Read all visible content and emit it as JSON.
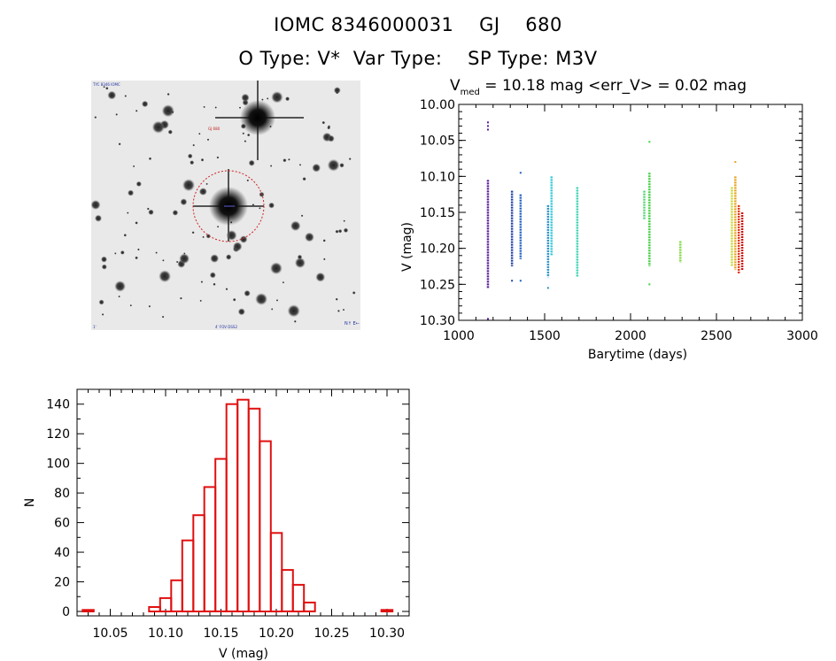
{
  "header": {
    "line1": "IOMC 8346000031    GJ    680",
    "line2": "O Type: V*  Var Type:    SP Type: M3V"
  },
  "finding_chart": {
    "corner_labels": [
      "TYC 8346 IOMC",
      "1'",
      "N↑ E←",
      "4' FOV DSS2"
    ],
    "target_label": "GJ 680"
  },
  "chart_data": [
    {
      "type": "scatter",
      "title_main": "V",
      "title_sub": "med",
      "title_rest": " = 10.18 mag <err_V> = 0.02 mag",
      "xlabel": "Barytime (days)",
      "ylabel": "V (mag)",
      "xlim": [
        1000,
        3000
      ],
      "ylim": [
        10.3,
        10.0
      ],
      "x_ticks": [
        1000,
        1500,
        2000,
        2500,
        3000
      ],
      "x_tick_labels": [
        "1000",
        "1500",
        "2000",
        "2500",
        "3000"
      ],
      "y_ticks": [
        10.0,
        10.05,
        10.1,
        10.15,
        10.2,
        10.25,
        10.3
      ],
      "y_tick_labels": [
        "10.00",
        "10.05",
        "10.10",
        "10.15",
        "10.20",
        "10.25",
        "10.30"
      ],
      "groups": [
        {
          "x": 1170,
          "ymin": 10.105,
          "ymax": 10.255,
          "color": "#5a1a9a",
          "outliers": [
            10.025,
            10.03,
            10.035,
            10.298
          ]
        },
        {
          "x": 1310,
          "ymin": 10.12,
          "ymax": 10.225,
          "color": "#1f3fa8",
          "outliers": [
            10.245
          ]
        },
        {
          "x": 1360,
          "ymin": 10.125,
          "ymax": 10.215,
          "color": "#2060c0",
          "outliers": [
            10.095,
            10.245
          ]
        },
        {
          "x": 1520,
          "ymin": 10.14,
          "ymax": 10.24,
          "color": "#2a90c8",
          "outliers": [
            10.255
          ]
        },
        {
          "x": 1540,
          "ymin": 10.1,
          "ymax": 10.21,
          "color": "#30c8d8",
          "outliers": []
        },
        {
          "x": 1690,
          "ymin": 10.115,
          "ymax": 10.24,
          "color": "#38d0b0",
          "outliers": []
        },
        {
          "x": 2080,
          "ymin": 10.12,
          "ymax": 10.16,
          "color": "#50d870",
          "outliers": []
        },
        {
          "x": 2110,
          "ymin": 10.095,
          "ymax": 10.225,
          "color": "#40d040",
          "outliers": [
            10.052,
            10.25
          ]
        },
        {
          "x": 2290,
          "ymin": 10.19,
          "ymax": 10.22,
          "color": "#80d840",
          "outliers": []
        },
        {
          "x": 2590,
          "ymin": 10.115,
          "ymax": 10.225,
          "color": "#c8d830",
          "outliers": []
        },
        {
          "x": 2610,
          "ymin": 10.1,
          "ymax": 10.23,
          "color": "#e8a020",
          "outliers": [
            10.08
          ]
        },
        {
          "x": 2630,
          "ymin": 10.14,
          "ymax": 10.235,
          "color": "#e03010",
          "outliers": []
        },
        {
          "x": 2650,
          "ymin": 10.15,
          "ymax": 10.23,
          "color": "#d01010",
          "outliers": []
        }
      ]
    },
    {
      "type": "bar",
      "title": "",
      "xlabel": "V (mag)",
      "ylabel": "N",
      "xlim": [
        10.02,
        10.32
      ],
      "ylim": [
        -3,
        150
      ],
      "bar_color": "#e01010",
      "bin_width": 0.01,
      "bin_starts": [
        10.025,
        10.035,
        10.045,
        10.055,
        10.065,
        10.075,
        10.085,
        10.095,
        10.105,
        10.115,
        10.125,
        10.135,
        10.145,
        10.155,
        10.165,
        10.175,
        10.185,
        10.195,
        10.205,
        10.215,
        10.225,
        10.235,
        10.245,
        10.255,
        10.265,
        10.275,
        10.285,
        10.295
      ],
      "values": [
        1,
        0,
        0,
        0,
        0,
        0,
        3,
        9,
        21,
        48,
        65,
        84,
        103,
        140,
        143,
        137,
        115,
        53,
        28,
        18,
        6,
        0,
        0,
        0,
        0,
        0,
        0,
        1
      ],
      "x_ticks": [
        10.05,
        10.1,
        10.15,
        10.2,
        10.25,
        10.3
      ],
      "x_tick_labels": [
        "10.05",
        "10.10",
        "10.15",
        "10.20",
        "10.25",
        "10.30"
      ],
      "y_ticks": [
        0,
        20,
        40,
        60,
        80,
        100,
        120,
        140
      ],
      "y_tick_labels": [
        "0",
        "20",
        "40",
        "60",
        "80",
        "100",
        "120",
        "140"
      ]
    }
  ]
}
